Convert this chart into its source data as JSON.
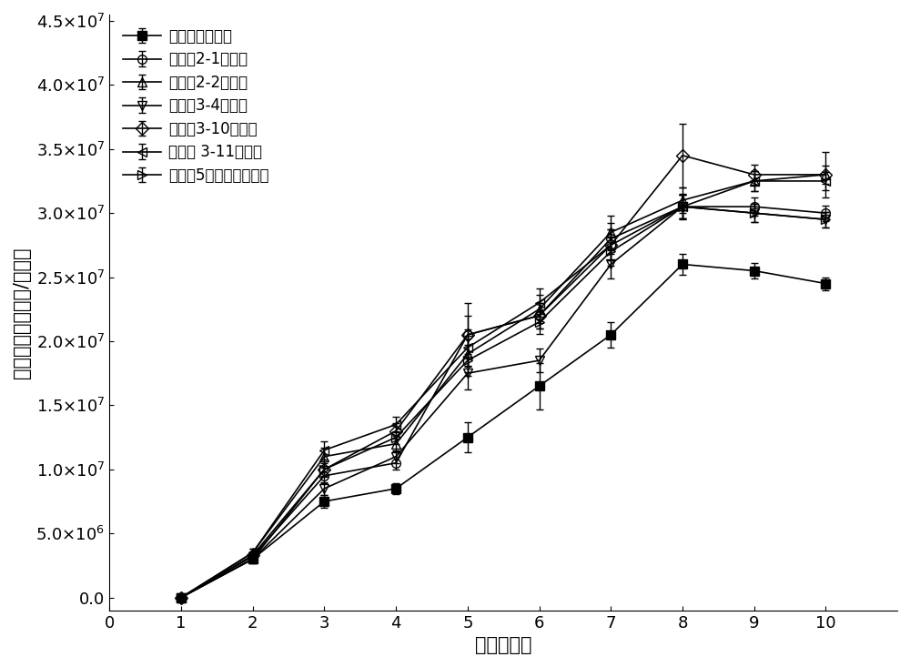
{
  "x": [
    1,
    2,
    3,
    4,
    5,
    6,
    7,
    8,
    9,
    10
  ],
  "series": [
    {
      "label": "对照（纯栊藻）",
      "color": "#000000",
      "marker": "s",
      "markerfacecolor": "black",
      "y": [
        0.0,
        3000000.0,
        7500000.0,
        8500000.0,
        12500000.0,
        16500000.0,
        20500000.0,
        26000000.0,
        25500000.0,
        24500000.0
      ],
      "yerr": [
        0.0,
        200000.0,
        500000.0,
        400000.0,
        1200000.0,
        1800000.0,
        1000000.0,
        800000.0,
        600000.0,
        500000.0
      ]
    },
    {
      "label": "栊藻和2-1共培养",
      "color": "#000000",
      "marker": "o",
      "markerfacecolor": "none",
      "y": [
        0.0,
        3200000.0,
        9500000.0,
        10500000.0,
        20500000.0,
        22000000.0,
        28000000.0,
        30500000.0,
        30500000.0,
        30000000.0
      ],
      "yerr": [
        0.0,
        300000.0,
        600000.0,
        500000.0,
        1500000.0,
        1000000.0,
        1200000.0,
        900000.0,
        700000.0,
        600000.0
      ]
    },
    {
      "label": "栊藻和2-2共培养",
      "color": "#000000",
      "marker": "^",
      "markerfacecolor": "none",
      "y": [
        0.0,
        3500000.0,
        11000000.0,
        12000000.0,
        19000000.0,
        22500000.0,
        28500000.0,
        31000000.0,
        32500000.0,
        33000000.0
      ],
      "yerr": [
        0.0,
        300000.0,
        700000.0,
        600000.0,
        1400000.0,
        1100000.0,
        1300000.0,
        1000000.0,
        800000.0,
        700000.0
      ]
    },
    {
      "label": "栊藻和3-4共培养",
      "color": "#000000",
      "marker": "v",
      "markerfacecolor": "none",
      "y": [
        0.0,
        3000000.0,
        8500000.0,
        11000000.0,
        17500000.0,
        18500000.0,
        26000000.0,
        30500000.0,
        30000000.0,
        29500000.0
      ],
      "yerr": [
        0.0,
        300000.0,
        500000.0,
        500000.0,
        1300000.0,
        900000.0,
        1100000.0,
        900000.0,
        700000.0,
        600000.0
      ]
    },
    {
      "label": "栊藻和3-10共培养",
      "color": "#000000",
      "marker": "D",
      "markerfacecolor": "none",
      "y": [
        0.0,
        3300000.0,
        10000000.0,
        13000000.0,
        20500000.0,
        22000000.0,
        27500000.0,
        34500000.0,
        33000000.0,
        33000000.0
      ],
      "yerr": [
        0.0,
        300000.0,
        600000.0,
        600000.0,
        2500000.0,
        1000000.0,
        1200000.0,
        2500000.0,
        800000.0,
        1800000.0
      ]
    },
    {
      "label": "栊藻和 3-11共培养",
      "color": "#000000",
      "marker": "<",
      "markerfacecolor": "none",
      "y": [
        0.0,
        3500000.0,
        11500000.0,
        13500000.0,
        19500000.0,
        23000000.0,
        27500000.0,
        30500000.0,
        32500000.0,
        32500000.0
      ],
      "yerr": [
        0.0,
        300000.0,
        700000.0,
        600000.0,
        1400000.0,
        1100000.0,
        1200000.0,
        1000000.0,
        800000.0,
        700000.0
      ]
    },
    {
      "label": "栊藻和5种共生菌共培养",
      "color": "#000000",
      "marker": ">",
      "markerfacecolor": "none",
      "y": [
        0.0,
        3000000.0,
        10000000.0,
        12500000.0,
        18500000.0,
        21500000.0,
        27000000.0,
        30500000.0,
        30000000.0,
        29500000.0
      ],
      "yerr": [
        0.0,
        300000.0,
        500000.0,
        500000.0,
        1200000.0,
        900000.0,
        1100000.0,
        900000.0,
        700000.0,
        600000.0
      ]
    }
  ],
  "xlabel": "时间（天）",
  "ylabel": "栊藻细胞密度（个/毫升）",
  "xlim": [
    0,
    11
  ],
  "ylim": [
    -1000000.0,
    45500000.0
  ],
  "yticks": [
    0.0,
    5000000.0,
    10000000.0,
    15000000.0,
    20000000.0,
    25000000.0,
    30000000.0,
    35000000.0,
    40000000.0,
    45000000.0
  ],
  "xticks": [
    0,
    1,
    2,
    3,
    4,
    5,
    6,
    7,
    8,
    9,
    10
  ],
  "figsize": [
    10.0,
    7.33
  ],
  "dpi": 100,
  "fontsize_axis": 15,
  "fontsize_tick": 13,
  "fontsize_legend": 12
}
